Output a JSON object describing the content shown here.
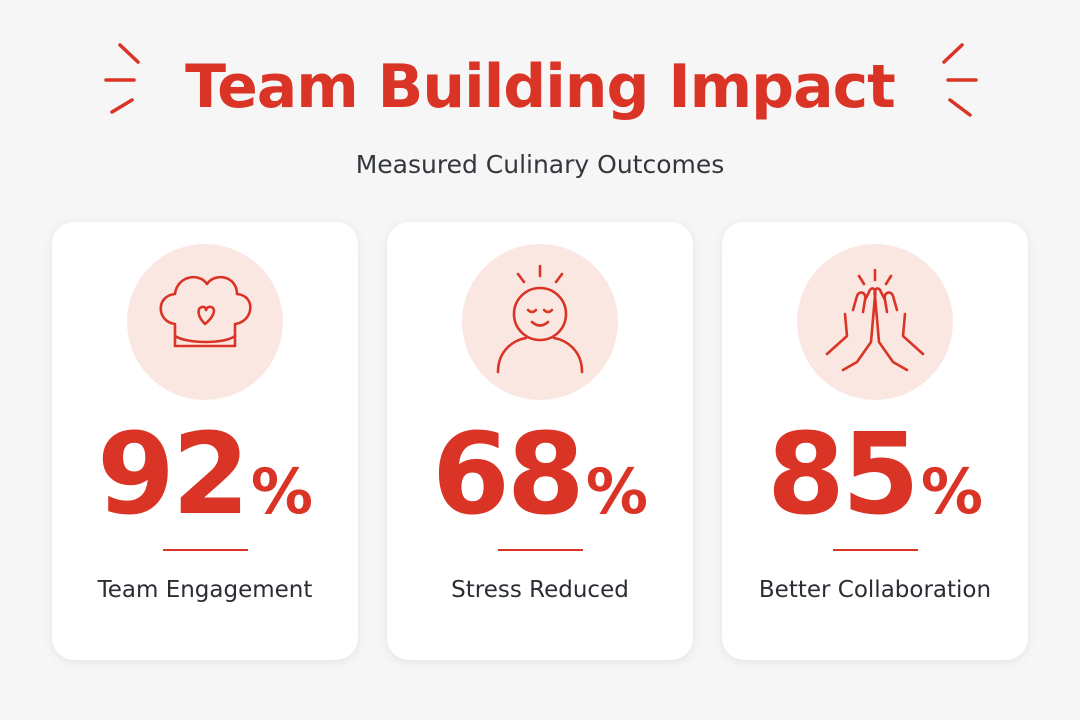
{
  "header": {
    "title": "Team Building Impact",
    "subtitle": "Measured Culinary Outcomes"
  },
  "cards": [
    {
      "value": 92,
      "unit": "%",
      "label": "Team Engagement"
    },
    {
      "value": 68,
      "unit": "%",
      "label": "Stress Reduced"
    },
    {
      "value": 85,
      "unit": "%",
      "label": "Better Collaboration"
    }
  ]
}
